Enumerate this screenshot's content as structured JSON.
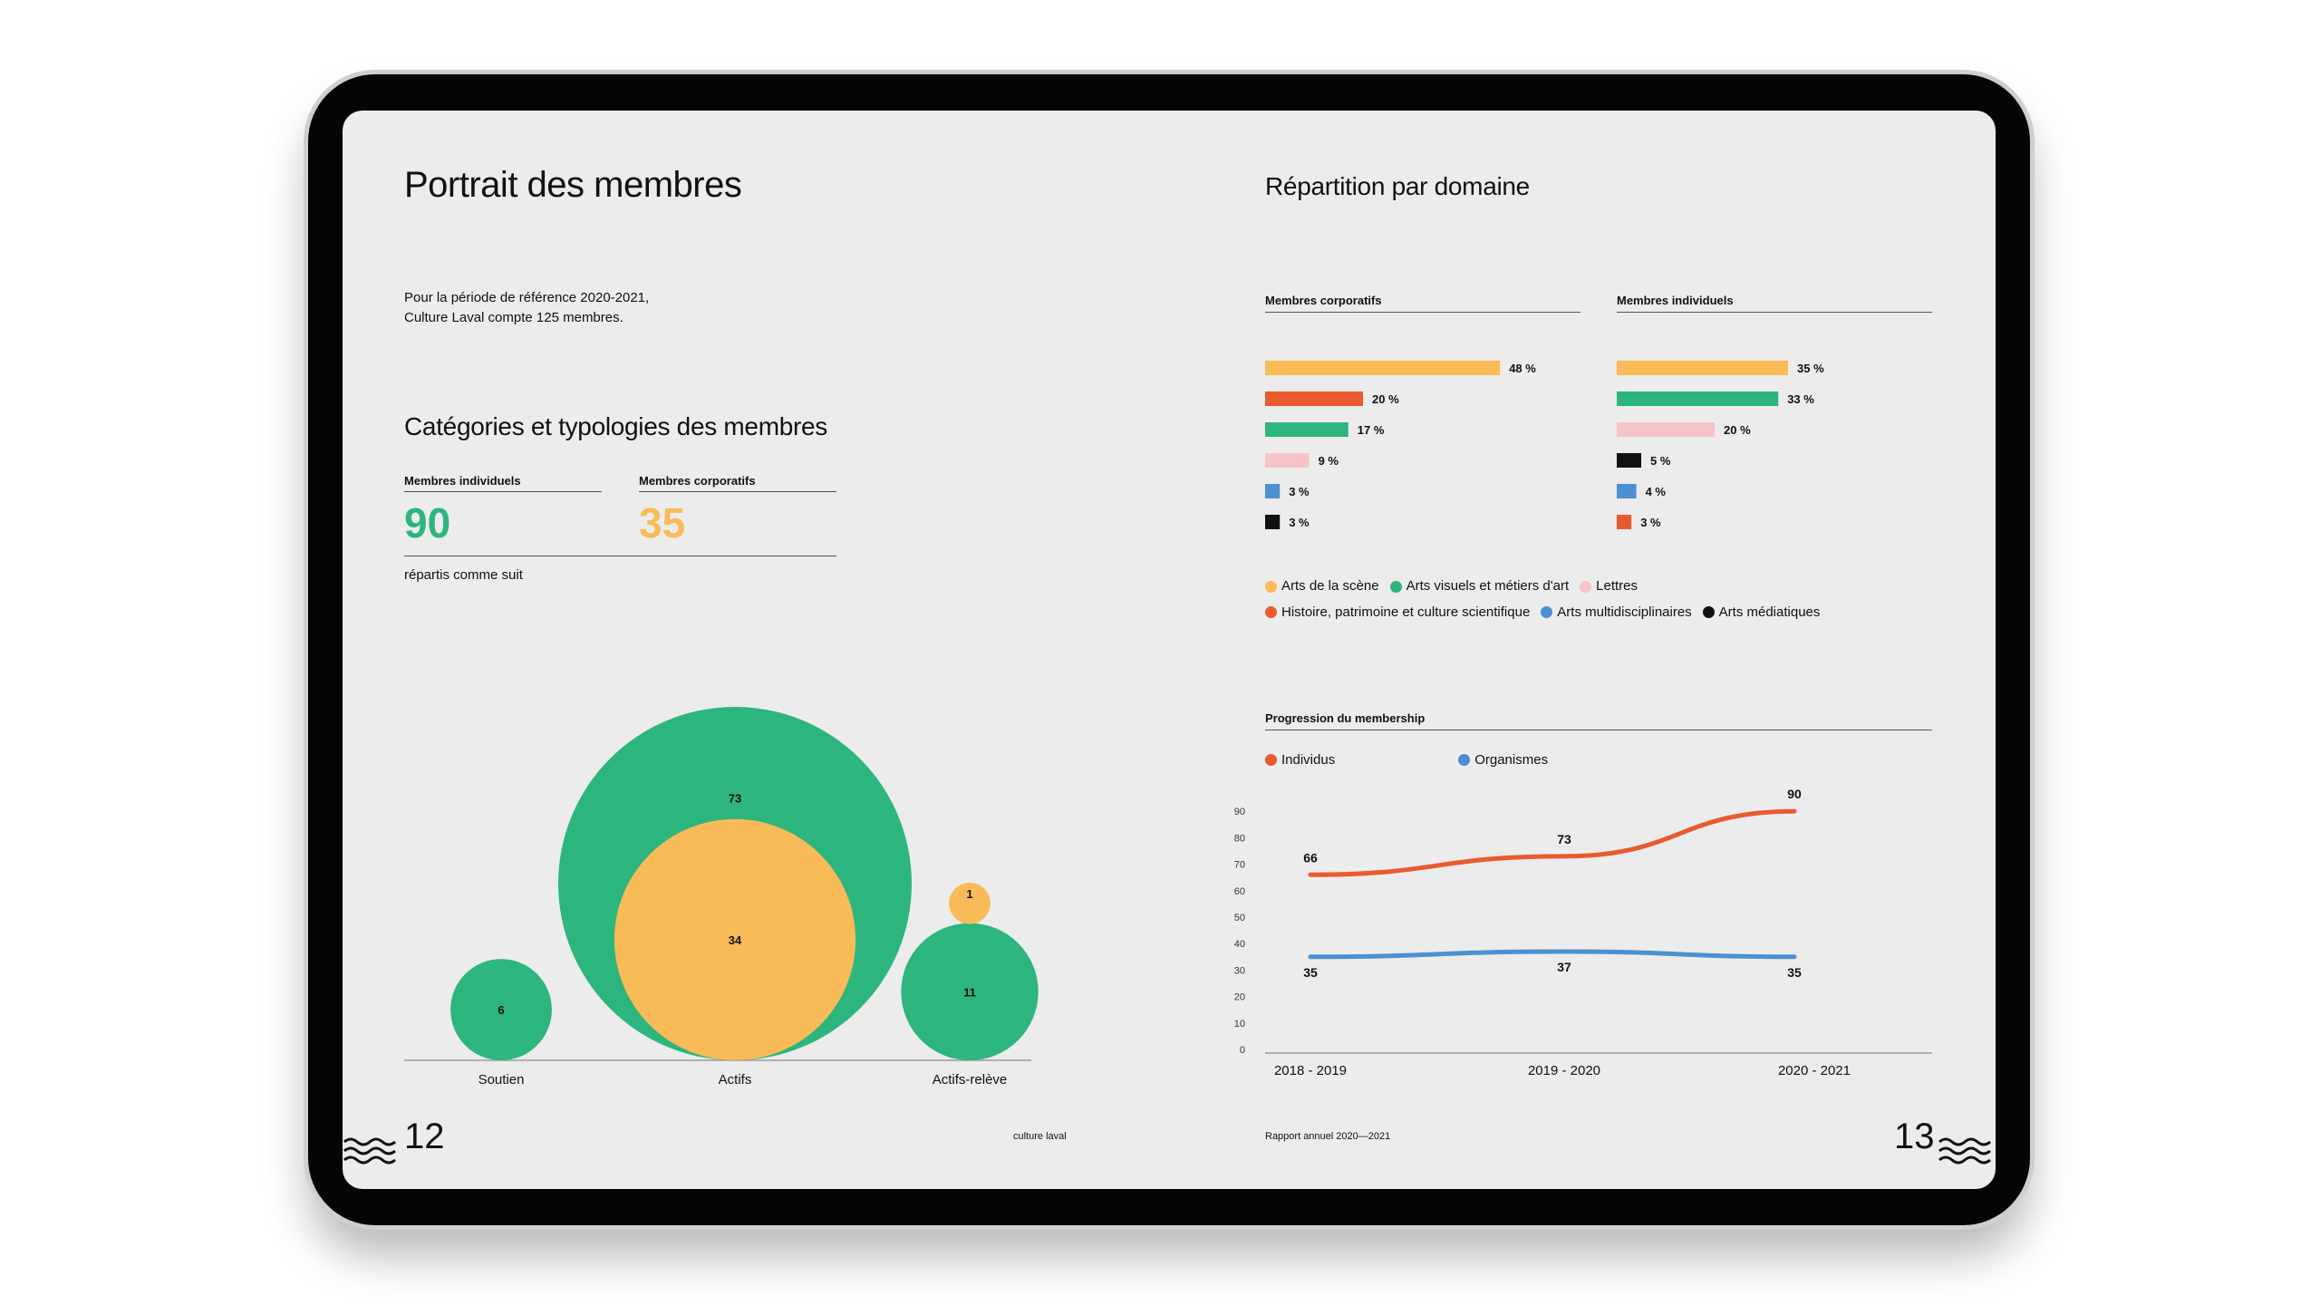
{
  "left": {
    "title": "Portrait des membres",
    "intro_line1": "Pour la période de référence 2020-2021,",
    "intro_line2": "Culture Laval compte 125 membres.",
    "section_title": "Catégories et typologies des membres",
    "individual_label": "Membres individuels",
    "individual_value": "90",
    "corporate_label": "Membres corporatifs",
    "corporate_value": "35",
    "split_note": "répartis comme suit",
    "page_number": "12",
    "footer_text": "culture laval"
  },
  "right": {
    "title": "Répartition par domaine",
    "corporate_label": "Membres corporatifs",
    "individual_label": "Membres individuels",
    "progress_title": "Progression du membership",
    "page_number": "13",
    "footer_text": "Rapport annuel 2020—2021"
  },
  "colors": {
    "green": "#2db57e",
    "yellow": "#f8bb58",
    "red": "#ea5a2f",
    "pink": "#f6c4c6",
    "blue": "#4b90d2",
    "black": "#111111",
    "screen_bg": "#ececec"
  },
  "domain_legend": [
    {
      "label": "Arts de la scène",
      "color": "#f8bb58"
    },
    {
      "label": "Arts visuels et métiers d'art",
      "color": "#2db57e"
    },
    {
      "label": "Lettres",
      "color": "#f6c4c6"
    },
    {
      "label": "Histoire, patrimoine et culture scientifique",
      "color": "#ea5a2f"
    },
    {
      "label": "Arts multidisciplinaires",
      "color": "#4b90d2"
    },
    {
      "label": "Arts médiatiques",
      "color": "#111111"
    }
  ],
  "chart_data": [
    {
      "type": "bubble",
      "categories": [
        "Soutien",
        "Actifs",
        "Actifs-relève"
      ],
      "series": [
        {
          "values": [
            6,
            73,
            11
          ],
          "color": "#2db57e"
        },
        {
          "values": [
            null,
            34,
            1
          ],
          "color": "#f8bb58"
        }
      ]
    },
    {
      "type": "bar",
      "orientation": "horizontal",
      "title": "Membres corporatifs",
      "values": [
        48,
        20,
        17,
        9,
        3,
        3
      ],
      "labels": [
        "48 %",
        "20 %",
        "17 %",
        "9 %",
        "3 %",
        "3 %"
      ],
      "colors": [
        "#f8bb58",
        "#ea5a2f",
        "#2db57e",
        "#f6c4c6",
        "#4b90d2",
        "#111111"
      ]
    },
    {
      "type": "bar",
      "orientation": "horizontal",
      "title": "Membres individuels",
      "values": [
        35,
        33,
        20,
        5,
        4,
        3
      ],
      "labels": [
        "35 %",
        "33 %",
        "20 %",
        "5 %",
        "4 %",
        "3 %"
      ],
      "colors": [
        "#f8bb58",
        "#2db57e",
        "#f6c4c6",
        "#111111",
        "#4b90d2",
        "#ea5a2f"
      ]
    },
    {
      "type": "line",
      "title": "Progression du membership",
      "categories": [
        "2018 - 2019",
        "2019 - 2020",
        "2020 - 2021"
      ],
      "series": [
        {
          "name": "Individus",
          "values": [
            66,
            73,
            90
          ],
          "color": "#ea5a2f"
        },
        {
          "name": "Organismes",
          "values": [
            35,
            37,
            35
          ],
          "color": "#4b90d2"
        }
      ],
      "ylim": [
        0,
        90
      ],
      "yticks": [
        0,
        10,
        20,
        30,
        40,
        50,
        60,
        70,
        80,
        90
      ]
    }
  ]
}
